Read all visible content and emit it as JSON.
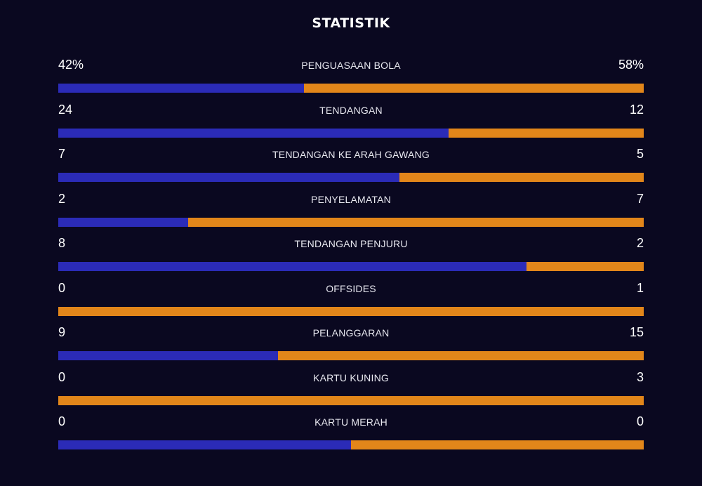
{
  "title": "STATISTIK",
  "colors": {
    "background": "#0a0820",
    "home": "#2b2bb7",
    "away": "#e2861a"
  },
  "stats": [
    {
      "label": "PENGUASAAN BOLA",
      "home": "42%",
      "away": "58%",
      "home_fraction": 0.42
    },
    {
      "label": "TENDANGAN",
      "home": "24",
      "away": "12",
      "home_fraction": 0.667
    },
    {
      "label": "TENDANGAN KE ARAH GAWANG",
      "home": "7",
      "away": "5",
      "home_fraction": 0.583
    },
    {
      "label": "PENYELAMATAN",
      "home": "2",
      "away": "7",
      "home_fraction": 0.222
    },
    {
      "label": "TENDANGAN PENJURU",
      "home": "8",
      "away": "2",
      "home_fraction": 0.8
    },
    {
      "label": "OFFSIDES",
      "home": "0",
      "away": "1",
      "home_fraction": 0
    },
    {
      "label": "PELANGGARAN",
      "home": "9",
      "away": "15",
      "home_fraction": 0.375
    },
    {
      "label": "KARTU KUNING",
      "home": "0",
      "away": "3",
      "home_fraction": 0
    },
    {
      "label": "KARTU MERAH",
      "home": "0",
      "away": "0",
      "home_fraction": 0.5
    }
  ]
}
